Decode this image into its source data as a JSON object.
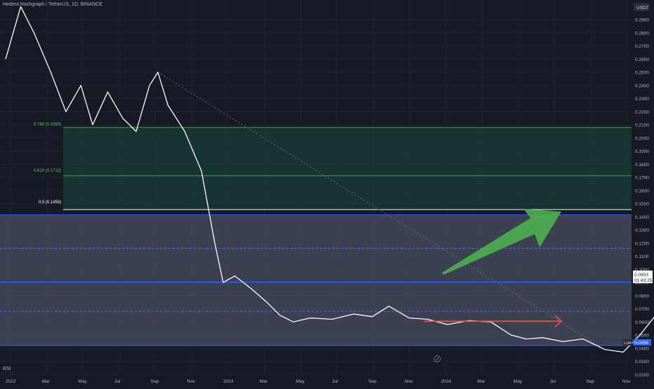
{
  "header": {
    "symbol_title": "Hedera Hashgraph / TetherUS, 1D, BINANCE",
    "currency_badge": "USDT"
  },
  "rsi_label": "RSI",
  "price_axis": {
    "ticks": [
      "0.2900",
      "0.2800",
      "0.2700",
      "0.2600",
      "0.2500",
      "0.2400",
      "0.2300",
      "0.2200",
      "0.2100",
      "0.2000",
      "0.1900",
      "0.1800",
      "0.1700",
      "0.1600",
      "0.1500",
      "0.1400",
      "0.1300",
      "0.1200",
      "0.1100",
      "0.1000",
      "0.0900",
      "0.0800",
      "0.0700",
      "0.0600",
      "0.0500",
      "0.0400",
      "0.0300",
      "0.0200"
    ],
    "current_price": "0.0903",
    "countdown": "01:43:25",
    "low_label": "Low",
    "low_value": "0.0356"
  },
  "time_axis": {
    "ticks": [
      "2022",
      "Mar",
      "May",
      "Jul",
      "Sep",
      "Nov",
      "2023",
      "Mar",
      "May",
      "Jul",
      "Sep",
      "Nov",
      "2024",
      "Mar",
      "May",
      "Jul",
      "Sep",
      "Nov"
    ]
  },
  "fib_labels": {
    "f0786": "0.786 (0.2080)",
    "f0618": "0.618 (0.1712)",
    "f05": "0.5 (0.1455)"
  },
  "colors": {
    "background": "#161a25",
    "price_line": "#ffffff",
    "support_line": "#2962ff",
    "fib_zone": "#1a4a3f",
    "range_zone": "#4a4f62",
    "bull_arrow": "#4caf50",
    "bear_arrow": "#ef5350"
  },
  "chart_data": {
    "type": "line",
    "title": "Hedera Hashgraph / TetherUS, 1D, BINANCE",
    "x_start": "2022-01-01",
    "ylim": [
      0.018,
      0.305
    ],
    "x": [
      "2022-01-01",
      "2022-01-10",
      "2022-01-18",
      "2022-01-28",
      "2022-02-06",
      "2022-02-15",
      "2022-02-22",
      "2022-03-03",
      "2022-03-12",
      "2022-03-20",
      "2022-03-28",
      "2022-04-02",
      "2022-04-08",
      "2022-04-18",
      "2022-04-28",
      "2022-05-06",
      "2022-05-11",
      "2022-05-18",
      "2022-05-28",
      "2022-06-06",
      "2022-06-14",
      "2022-06-22",
      "2022-07-02",
      "2022-07-15",
      "2022-07-28",
      "2022-08-08",
      "2022-08-18",
      "2022-08-30",
      "2022-09-10",
      "2022-09-22",
      "2022-10-05",
      "2022-10-18",
      "2022-10-30",
      "2022-11-08",
      "2022-11-18",
      "2022-11-30",
      "2022-12-12",
      "2022-12-25",
      "2023-01-05",
      "2023-01-15",
      "2023-01-25",
      "2023-02-05",
      "2023-02-15",
      "2023-02-22",
      "2023-03-03",
      "2023-03-15",
      "2023-03-28",
      "2023-04-08",
      "2023-04-18",
      "2023-04-28",
      "2023-05-10",
      "2023-05-22",
      "2023-06-05",
      "2023-06-12",
      "2023-06-22",
      "2023-07-02",
      "2023-07-14",
      "2023-07-22",
      "2023-08-05",
      "2023-08-16",
      "2023-08-28",
      "2023-09-10",
      "2023-09-22",
      "2023-10-05",
      "2023-10-18",
      "2023-10-28",
      "2023-11-08",
      "2023-11-18",
      "2023-11-28",
      "2023-12-08",
      "2023-12-15",
      "2023-12-20",
      "2023-12-26"
    ],
    "values": [
      0.26,
      0.3,
      0.28,
      0.25,
      0.22,
      0.24,
      0.21,
      0.235,
      0.215,
      0.205,
      0.24,
      0.25,
      0.225,
      0.205,
      0.175,
      0.12,
      0.09,
      0.095,
      0.085,
      0.075,
      0.065,
      0.06,
      0.063,
      0.062,
      0.066,
      0.064,
      0.072,
      0.063,
      0.062,
      0.058,
      0.061,
      0.06,
      0.05,
      0.047,
      0.048,
      0.045,
      0.047,
      0.039,
      0.037,
      0.05,
      0.066,
      0.075,
      0.073,
      0.088,
      0.083,
      0.075,
      0.066,
      0.062,
      0.068,
      0.06,
      0.058,
      0.053,
      0.05,
      0.046,
      0.048,
      0.047,
      0.052,
      0.054,
      0.059,
      0.055,
      0.064,
      0.05,
      0.05,
      0.049,
      0.048,
      0.05,
      0.058,
      0.062,
      0.058,
      0.065,
      0.073,
      0.084,
      0.0903
    ],
    "levels": {
      "fib_0786": 0.208,
      "fib_0618": 0.1712,
      "fib_05": 0.1455,
      "range_top": 0.1415,
      "range_mid_dashed": 0.116,
      "support": 0.0903,
      "range_low_dashed": 0.068,
      "range_bottom": 0.042,
      "low": 0.0356
    }
  }
}
